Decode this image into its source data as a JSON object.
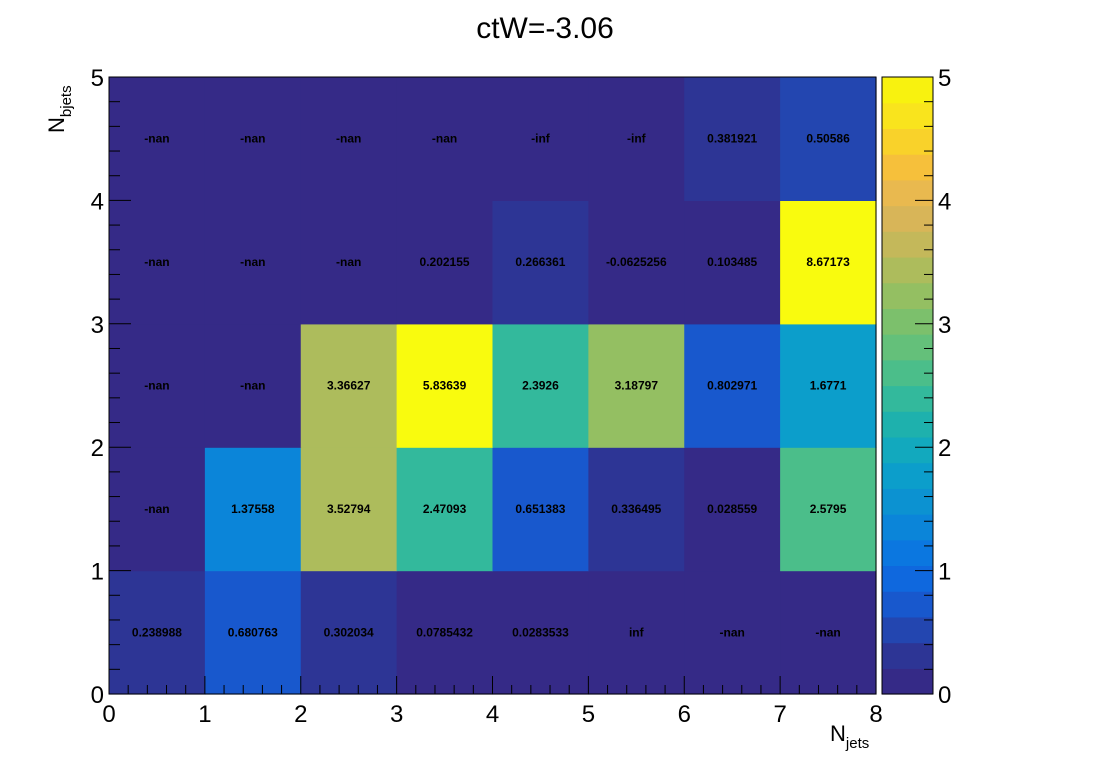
{
  "chart_data": {
    "type": "heatmap",
    "title": "ctW=-3.06",
    "xlabel": {
      "main": "N",
      "sub": "jets"
    },
    "ylabel": {
      "main": "N",
      "sub": "bjets"
    },
    "x_edges": [
      0,
      1,
      2,
      3,
      4,
      5,
      6,
      7,
      8
    ],
    "y_edges": [
      0,
      1,
      2,
      3,
      4,
      5
    ],
    "xlim": [
      0,
      8
    ],
    "ylim": [
      0,
      5
    ],
    "x_ticks": [
      "0",
      "1",
      "2",
      "3",
      "4",
      "5",
      "6",
      "7",
      "8"
    ],
    "y_ticks": [
      "0",
      "1",
      "2",
      "3",
      "4",
      "5"
    ],
    "zlim": [
      0,
      5
    ],
    "z_ticks": [
      "0",
      "1",
      "2",
      "3",
      "4",
      "5"
    ],
    "palette": [
      "#352a87",
      "#2d3595",
      "#2346b0",
      "#1858cd",
      "#0f68de",
      "#0b77e0",
      "#0b85d9",
      "#0c92d1",
      "#0c9ecb",
      "#12a9be",
      "#1eb1ad",
      "#33b99c",
      "#4bbe8a",
      "#64c07a",
      "#7cc06c",
      "#94bf62",
      "#adbc5c",
      "#c4b85a",
      "#d8b558",
      "#e9b94f",
      "#f6c03b",
      "#f9d22a",
      "#f9e41d",
      "#f8f20f"
    ],
    "out_of_range_color": "#f9fb0e",
    "empty_color": "#352a87",
    "rows": [
      {
        "y": 0.5,
        "values": [
          0.238988,
          0.680763,
          0.302034,
          0.0785432,
          0.0283533,
          null,
          null,
          null
        ],
        "labels": [
          "0.238988",
          "0.680763",
          "0.302034",
          "0.0785432",
          "0.0283533",
          "inf",
          "-nan",
          "-nan"
        ]
      },
      {
        "y": 1.5,
        "values": [
          null,
          1.37558,
          3.52794,
          2.47093,
          0.651383,
          0.336495,
          0.028559,
          2.5795
        ],
        "labels": [
          "-nan",
          "1.37558",
          "3.52794",
          "2.47093",
          "0.651383",
          "0.336495",
          "0.028559",
          "2.5795"
        ]
      },
      {
        "y": 2.5,
        "values": [
          null,
          null,
          3.36627,
          5.83639,
          2.3926,
          3.18797,
          0.802971,
          1.6771
        ],
        "labels": [
          "-nan",
          "-nan",
          "3.36627",
          "5.83639",
          "2.3926",
          "3.18797",
          "0.802971",
          "1.6771"
        ]
      },
      {
        "y": 3.5,
        "values": [
          null,
          null,
          null,
          0.202155,
          0.266361,
          -0.0625256,
          0.103485,
          8.67173
        ],
        "labels": [
          "-nan",
          "-nan",
          "-nan",
          "0.202155",
          "0.266361",
          "-0.0625256",
          "0.103485",
          "8.67173"
        ]
      },
      {
        "y": 4.5,
        "values": [
          null,
          null,
          null,
          null,
          null,
          null,
          0.381921,
          0.50586
        ],
        "labels": [
          "-nan",
          "-nan",
          "-nan",
          "-nan",
          "-inf",
          "-inf",
          "0.381921",
          "0.50586"
        ]
      }
    ]
  }
}
